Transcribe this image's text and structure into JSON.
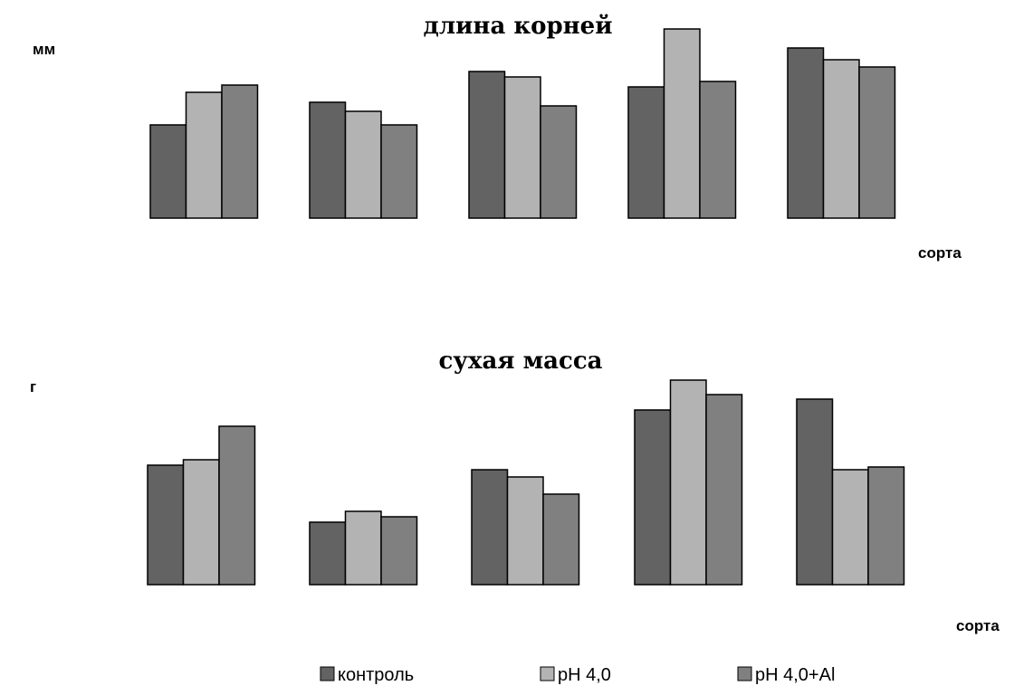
{
  "chart_data": [
    {
      "type": "bar",
      "title": "длина корней",
      "ylabel": "мм",
      "xlabel": "сорта",
      "categories": [
        "",
        "",
        "",
        "",
        ""
      ],
      "ylim": [
        0,
        210
      ],
      "series": [
        {
          "name": "контроль",
          "color": "#636363",
          "values": [
            103,
            128,
            162,
            145,
            188
          ]
        },
        {
          "name": "pH 4,0",
          "color": "#b3b3b3",
          "values": [
            139,
            118,
            156,
            209,
            175
          ]
        },
        {
          "name": "pH 4,0+Al",
          "color": "#808080",
          "values": [
            147,
            103,
            124,
            151,
            167
          ]
        }
      ]
    },
    {
      "type": "bar",
      "title": "сухая масса",
      "ylabel": "г",
      "xlabel": "сорта",
      "categories": [
        "",
        "",
        "",
        "",
        ""
      ],
      "ylim": [
        0,
        225
      ],
      "series": [
        {
          "name": "контроль",
          "color": "#636363",
          "values": [
            132,
            69,
            127,
            193,
            205
          ]
        },
        {
          "name": "pH 4,0",
          "color": "#b3b3b3",
          "values": [
            138,
            81,
            119,
            226,
            127
          ]
        },
        {
          "name": "pH 4,0+Al",
          "color": "#808080",
          "values": [
            175,
            75,
            100,
            210,
            130
          ]
        }
      ]
    }
  ],
  "legend": [
    {
      "label": "контроль",
      "color": "#636363"
    },
    {
      "label": "pH 4,0",
      "color": "#b3b3b3"
    },
    {
      "label": "pH 4,0+Al",
      "color": "#808080"
    }
  ]
}
